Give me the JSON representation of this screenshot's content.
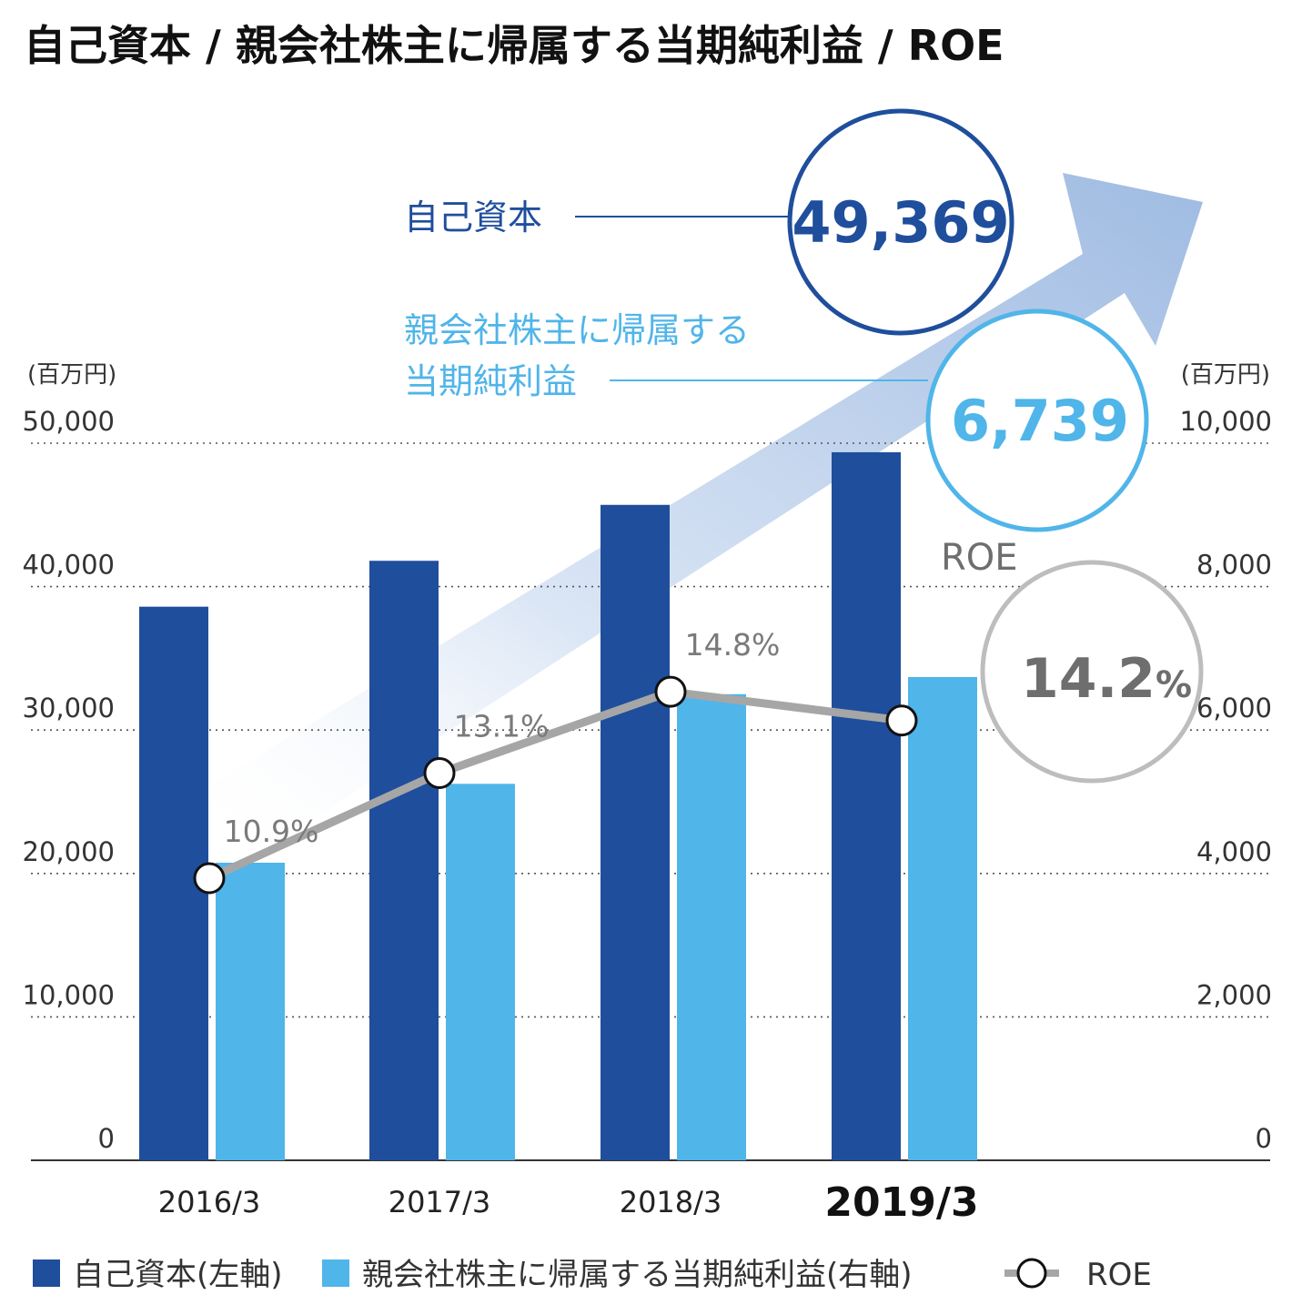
{
  "title": "自己資本 / 親会社株主に帰属する当期純利益 / ROE",
  "colors": {
    "equity": "#1f4e9c",
    "profit": "#50b5e9",
    "roe": "#a6a6a6",
    "roe_text": "#6e6e6e",
    "arrow": "#aec3e3"
  },
  "chart_data": {
    "type": "bar",
    "categories": [
      "2016/3",
      "2017/3",
      "2018/3",
      "2019/3"
    ],
    "highlight_category": "2019/3",
    "series": [
      {
        "name": "自己資本(左軸)",
        "axis": "left",
        "values": [
          38600,
          41800,
          45700,
          49369
        ]
      },
      {
        "name": "親会社株主に帰属する当期純利益(右軸)",
        "axis": "right",
        "values": [
          4150,
          5250,
          6500,
          6739
        ]
      }
    ],
    "line_series": {
      "name": "ROE",
      "values": [
        10.9,
        13.1,
        14.8,
        14.2
      ],
      "labels": [
        "10.9%",
        "13.1%",
        "14.8%",
        ""
      ]
    },
    "left_axis": {
      "unit": "(百万円)",
      "min": 0,
      "max": 50000,
      "ticks": [
        "0",
        "10,000",
        "20,000",
        "30,000",
        "40,000",
        "50,000"
      ]
    },
    "right_axis": {
      "unit": "(百万円)",
      "min": 0,
      "max": 10000,
      "ticks": [
        "0",
        "2,000",
        "4,000",
        "6,000",
        "8,000",
        "10,000"
      ]
    },
    "grid": "dotted horizontal",
    "legend_position": "bottom"
  },
  "callouts": {
    "equity_label": "自己資本",
    "equity_value": "49,369",
    "profit_label_line1": "親会社株主に帰属する",
    "profit_label_line2": "当期純利益",
    "profit_value": "6,739",
    "roe_label": "ROE",
    "roe_value": "14.2",
    "roe_unit": "%"
  },
  "legend": {
    "equity": "自己資本(左軸)",
    "profit": "親会社株主に帰属する当期純利益(右軸)",
    "roe": "ROE"
  }
}
